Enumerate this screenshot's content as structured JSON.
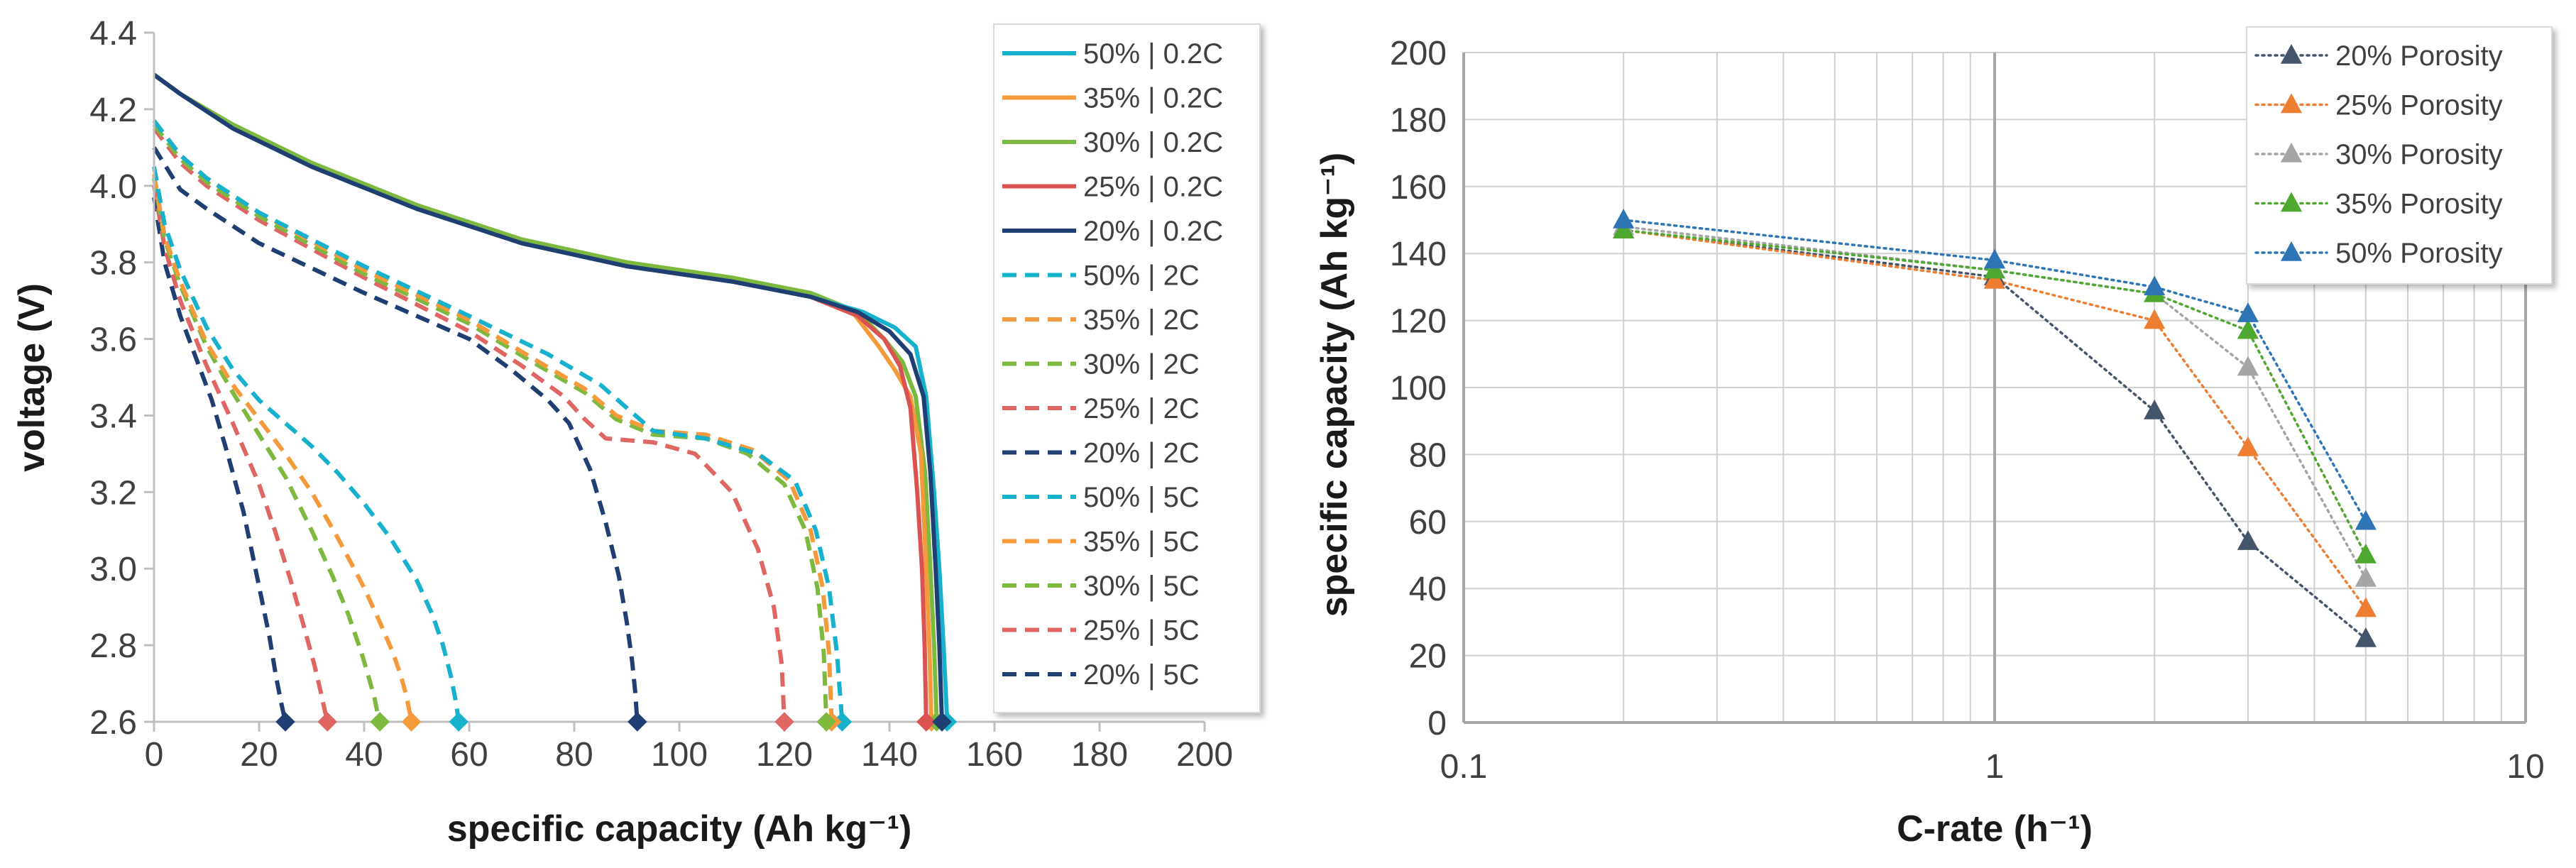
{
  "chart_data": [
    {
      "type": "line",
      "xlabel": "specific capacity (Ah kg⁻¹)",
      "ylabel": "voltage (V)",
      "xlim": [
        0,
        200
      ],
      "ylim": [
        2.6,
        4.4
      ],
      "xticks": [
        0,
        20,
        40,
        60,
        80,
        100,
        120,
        140,
        160,
        180,
        200
      ],
      "xtick_labels": [
        "0",
        "20",
        "40",
        "60",
        "80",
        "100",
        "120",
        "140",
        "160",
        "180",
        "200"
      ],
      "yticks": [
        2.6,
        2.8,
        3.0,
        3.2,
        3.4,
        3.6,
        3.8,
        4.0,
        4.2,
        4.4
      ],
      "ytick_labels": [
        "2.6",
        "2.8",
        "3.0",
        "3.2",
        "3.4",
        "3.6",
        "3.8",
        "4.0",
        "4.2",
        "4.4"
      ],
      "grid": false,
      "legend_position": "right",
      "series": [
        {
          "name": "50% | 0.2C",
          "color": "#17B1CE",
          "dash": "solid",
          "end_capacity": 151,
          "x": [
            0,
            5,
            15,
            30,
            50,
            70,
            90,
            110,
            125,
            135,
            141,
            145,
            147,
            148.5,
            149.5,
            150.3,
            151
          ],
          "y": [
            4.29,
            4.24,
            4.15,
            4.05,
            3.94,
            3.85,
            3.79,
            3.75,
            3.71,
            3.67,
            3.63,
            3.58,
            3.45,
            3.2,
            3.0,
            2.8,
            2.6
          ]
        },
        {
          "name": "35% | 0.2C",
          "color": "#F59A3B",
          "dash": "solid",
          "end_capacity": 148,
          "x": [
            0,
            5,
            15,
            30,
            50,
            70,
            90,
            110,
            125,
            133,
            138,
            141,
            144,
            146,
            147,
            147.6,
            148
          ],
          "y": [
            4.29,
            4.24,
            4.15,
            4.05,
            3.94,
            3.85,
            3.79,
            3.75,
            3.71,
            3.67,
            3.58,
            3.52,
            3.45,
            3.3,
            3.0,
            2.8,
            2.6
          ]
        },
        {
          "name": "30% | 0.2C",
          "color": "#7DB83F",
          "dash": "solid",
          "end_capacity": 149,
          "x": [
            0,
            5,
            15,
            30,
            50,
            70,
            90,
            110,
            125,
            134,
            139,
            142.5,
            145,
            146.8,
            147.8,
            148.5,
            149
          ],
          "y": [
            4.29,
            4.24,
            4.16,
            4.06,
            3.95,
            3.86,
            3.8,
            3.76,
            3.72,
            3.67,
            3.6,
            3.54,
            3.45,
            3.25,
            3.0,
            2.8,
            2.6
          ]
        },
        {
          "name": "25% | 0.2C",
          "color": "#DB5350",
          "dash": "solid",
          "end_capacity": 147,
          "x": [
            0,
            5,
            15,
            30,
            50,
            70,
            90,
            110,
            125,
            134,
            139,
            142,
            144,
            145.3,
            146.2,
            146.7,
            147
          ],
          "y": [
            4.29,
            4.24,
            4.15,
            4.05,
            3.94,
            3.85,
            3.79,
            3.75,
            3.71,
            3.66,
            3.6,
            3.53,
            3.42,
            3.2,
            3.0,
            2.8,
            2.6
          ]
        },
        {
          "name": "20% | 0.2C",
          "color": "#1F3F73",
          "dash": "solid",
          "end_capacity": 150,
          "x": [
            0,
            5,
            15,
            30,
            50,
            70,
            90,
            110,
            125,
            134,
            140,
            144,
            146.5,
            147.8,
            148.8,
            149.5,
            150
          ],
          "y": [
            4.29,
            4.24,
            4.15,
            4.05,
            3.94,
            3.85,
            3.79,
            3.75,
            3.71,
            3.67,
            3.62,
            3.56,
            3.45,
            3.25,
            3.0,
            2.8,
            2.6
          ]
        },
        {
          "name": "50% | 2C",
          "color": "#17B1CE",
          "dash": "dashed",
          "end_capacity": 131,
          "x": [
            0,
            5,
            10,
            20,
            40,
            60,
            75,
            85,
            90,
            95,
            105,
            115,
            122,
            126,
            128.5,
            130,
            131
          ],
          "y": [
            4.17,
            4.08,
            4.02,
            3.93,
            3.79,
            3.66,
            3.56,
            3.48,
            3.42,
            3.36,
            3.34,
            3.3,
            3.23,
            3.1,
            2.95,
            2.78,
            2.6
          ]
        },
        {
          "name": "35% | 2C",
          "color": "#F59A3B",
          "dash": "dashed",
          "end_capacity": 129,
          "x": [
            0,
            5,
            10,
            20,
            40,
            60,
            72,
            82,
            88,
            95,
            105,
            114,
            121,
            125,
            127.3,
            128.5,
            129
          ],
          "y": [
            4.17,
            4.08,
            4.02,
            3.93,
            3.78,
            3.65,
            3.55,
            3.47,
            3.4,
            3.36,
            3.35,
            3.31,
            3.23,
            3.1,
            2.95,
            2.78,
            2.6
          ]
        },
        {
          "name": "30% | 2C",
          "color": "#7DB83F",
          "dash": "dashed",
          "end_capacity": 128,
          "x": [
            0,
            5,
            10,
            20,
            40,
            60,
            72,
            82,
            88,
            95,
            105,
            113,
            120,
            124,
            126.3,
            127.5,
            128
          ],
          "y": [
            4.16,
            4.07,
            4.01,
            3.92,
            3.77,
            3.64,
            3.54,
            3.46,
            3.39,
            3.35,
            3.34,
            3.3,
            3.22,
            3.1,
            2.95,
            2.78,
            2.6
          ]
        },
        {
          "name": "25% | 2C",
          "color": "#E06663",
          "dash": "dashed",
          "end_capacity": 120,
          "x": [
            0,
            5,
            10,
            20,
            40,
            60,
            70,
            78,
            82,
            86,
            95,
            103,
            110,
            115,
            118,
            119.5,
            120
          ],
          "y": [
            4.15,
            4.06,
            4.0,
            3.91,
            3.76,
            3.62,
            3.53,
            3.45,
            3.39,
            3.34,
            3.33,
            3.3,
            3.2,
            3.05,
            2.9,
            2.75,
            2.6
          ]
        },
        {
          "name": "20% | 2C",
          "color": "#1F3F73",
          "dash": "dashed",
          "end_capacity": 92,
          "x": [
            0,
            5,
            10,
            20,
            40,
            60,
            68,
            75,
            79,
            83,
            86,
            88.5,
            90,
            91,
            91.6,
            92
          ],
          "y": [
            4.1,
            3.99,
            3.94,
            3.85,
            3.72,
            3.6,
            3.52,
            3.44,
            3.38,
            3.26,
            3.12,
            2.98,
            2.86,
            2.76,
            2.68,
            2.6
          ]
        },
        {
          "name": "50% | 5C",
          "color": "#17B1CE",
          "dash": "dashed",
          "end_capacity": 58,
          "x": [
            0,
            2,
            5,
            10,
            15,
            20,
            25,
            30,
            35,
            40,
            45,
            50,
            53,
            55,
            56.5,
            57.5,
            58
          ],
          "y": [
            4.05,
            3.9,
            3.78,
            3.63,
            3.52,
            3.44,
            3.38,
            3.32,
            3.25,
            3.17,
            3.08,
            2.97,
            2.88,
            2.8,
            2.72,
            2.65,
            2.6
          ]
        },
        {
          "name": "35% | 5C",
          "color": "#F59A3B",
          "dash": "dashed",
          "end_capacity": 49,
          "x": [
            0,
            2,
            5,
            10,
            15,
            20,
            25,
            30,
            35,
            40,
            43,
            45.5,
            47,
            48,
            48.6,
            49
          ],
          "y": [
            4.03,
            3.87,
            3.75,
            3.59,
            3.48,
            3.39,
            3.3,
            3.2,
            3.08,
            2.95,
            2.86,
            2.78,
            2.72,
            2.67,
            2.63,
            2.6
          ]
        },
        {
          "name": "30% | 5C",
          "color": "#7DB83F",
          "dash": "dashed",
          "end_capacity": 43,
          "x": [
            0,
            2,
            5,
            10,
            15,
            20,
            25,
            30,
            34,
            37,
            39.5,
            41,
            42,
            42.6,
            43
          ],
          "y": [
            4.02,
            3.86,
            3.74,
            3.58,
            3.46,
            3.35,
            3.24,
            3.1,
            2.98,
            2.88,
            2.78,
            2.71,
            2.66,
            2.62,
            2.6
          ]
        },
        {
          "name": "25% | 5C",
          "color": "#E06663",
          "dash": "dashed",
          "end_capacity": 33,
          "x": [
            0,
            2,
            5,
            10,
            15,
            20,
            23,
            26,
            28.5,
            30.5,
            31.7,
            32.5,
            33
          ],
          "y": [
            4.0,
            3.84,
            3.7,
            3.53,
            3.38,
            3.22,
            3.1,
            2.97,
            2.85,
            2.75,
            2.68,
            2.63,
            2.6
          ]
        },
        {
          "name": "20% | 5C",
          "color": "#1F3F73",
          "dash": "dashed",
          "end_capacity": 25,
          "x": [
            0,
            2,
            5,
            8,
            11,
            14,
            17,
            19,
            20.5,
            22,
            23.2,
            24.2,
            25
          ],
          "y": [
            3.97,
            3.8,
            3.66,
            3.55,
            3.44,
            3.3,
            3.15,
            3.02,
            2.92,
            2.82,
            2.72,
            2.65,
            2.6
          ]
        }
      ]
    },
    {
      "type": "scatter",
      "xscale": "log",
      "xlabel": "C-rate (h⁻¹)",
      "ylabel": "specific capacity (Ah kg⁻¹)",
      "xlim": [
        0.1,
        10
      ],
      "ylim": [
        0,
        200
      ],
      "xticks": [
        0.1,
        1,
        10
      ],
      "xtick_labels": [
        "0.1",
        "1",
        "10"
      ],
      "yticks": [
        0,
        20,
        40,
        60,
        80,
        100,
        120,
        140,
        160,
        180,
        200
      ],
      "ytick_labels": [
        "0",
        "20",
        "40",
        "60",
        "80",
        "100",
        "120",
        "140",
        "160",
        "180",
        "200"
      ],
      "grid": true,
      "legend_position": "top-right",
      "x": [
        0.2,
        1,
        2,
        3,
        5
      ],
      "series": [
        {
          "name": "20% Porosity",
          "color": "#44546A",
          "values": [
            147,
            133,
            93,
            54,
            25
          ]
        },
        {
          "name": "25% Porosity",
          "color": "#ED7D31",
          "values": [
            147,
            132,
            120,
            82,
            34
          ]
        },
        {
          "name": "30% Porosity",
          "color": "#A5A5A5",
          "values": [
            148,
            135,
            128,
            106,
            43
          ]
        },
        {
          "name": "35% Porosity",
          "color": "#4EA72E",
          "values": [
            147,
            135,
            128,
            117,
            50
          ]
        },
        {
          "name": "50% Porosity",
          "color": "#2E75B6",
          "values": [
            150,
            138,
            130,
            122,
            60
          ]
        }
      ]
    }
  ]
}
